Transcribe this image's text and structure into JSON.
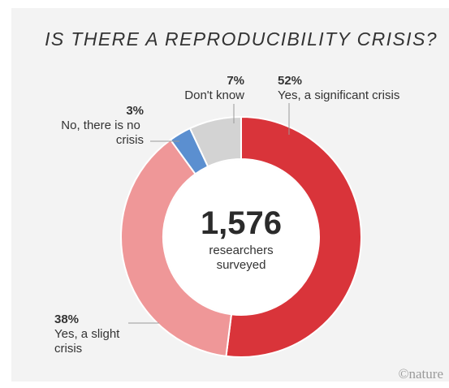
{
  "chart_data": {
    "type": "pie",
    "title": "IS THERE A REPRODUCIBILITY CRISIS?",
    "slices": [
      {
        "label": "Yes, a significant crisis",
        "percent": 52,
        "percent_label": "52%",
        "color": "#d9343a"
      },
      {
        "label": "Yes, a slight crisis",
        "percent": 38,
        "percent_label": "38%",
        "color": "#ef9798"
      },
      {
        "label": "No, there is no crisis",
        "percent": 3,
        "percent_label": "3%",
        "color": "#5b8fd0"
      },
      {
        "label": "Don't know",
        "percent": 7,
        "percent_label": "7%",
        "color": "#d3d3d3"
      }
    ],
    "center": {
      "value": "1,576",
      "text_line1": "researchers",
      "text_line2": "surveyed"
    },
    "credit": "©nature"
  }
}
